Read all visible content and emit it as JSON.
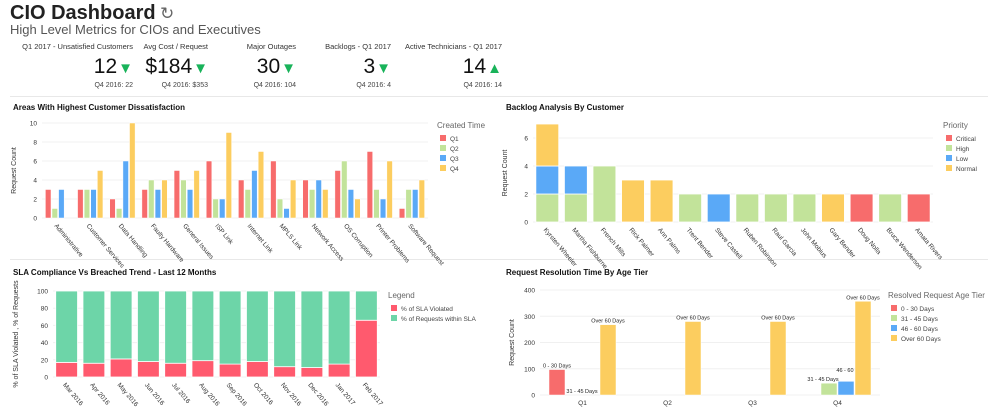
{
  "header": {
    "title": "CIO Dashboard",
    "subtitle": "High Level Metrics for CIOs and Executives",
    "refresh_icon": "refresh-icon"
  },
  "kpis": [
    {
      "label": "Q1 2017 - Unsatisfied Customers",
      "value": "12",
      "trend": "down",
      "previous": "Q4 2016: 22"
    },
    {
      "label": "Avg Cost / Request",
      "value": "$184",
      "trend": "down",
      "previous": "Q4 2016: $353"
    },
    {
      "label": "Major Outages",
      "value": "30",
      "trend": "down",
      "previous": "Q4 2016: 104"
    },
    {
      "label": "Backlogs - Q1 2017",
      "value": "3",
      "trend": "down",
      "previous": "Q4 2016: 4"
    },
    {
      "label": "Active Technicians - Q1 2017",
      "value": "14",
      "trend": "up",
      "previous": "Q4 2016: 14"
    }
  ],
  "colors": {
    "trend": "#19b35a",
    "q1": "#f76c6c",
    "q2": "#c2e39a",
    "q3": "#5aa9f7",
    "q4": "#fccd5f",
    "violated": "#ff5a6e",
    "within": "#6dd5a8"
  },
  "chart_data": [
    {
      "id": "c1",
      "type": "bar",
      "title": "Areas With Highest Customer Dissatisfaction",
      "ylabel": "Request Count",
      "ylim": [
        0,
        10
      ],
      "yticks": [
        0,
        2,
        4,
        6,
        8,
        10
      ],
      "legend_title": "Created Time",
      "legend": "right",
      "grid": true,
      "categories": [
        "Administrative",
        "Customer Services",
        "Data Handling",
        "Faulty Hardware",
        "General Issues",
        "ISP Link",
        "Internet Link",
        "MPLS Link",
        "Network Access",
        "OS Corruption",
        "Printer Problems",
        "Software Request"
      ],
      "series": [
        {
          "name": "Q1",
          "color": "#f76c6c",
          "values": [
            3,
            3,
            2,
            3,
            5,
            6,
            4,
            6,
            4,
            5,
            7,
            1
          ]
        },
        {
          "name": "Q2",
          "color": "#c2e39a",
          "values": [
            1,
            3,
            1,
            4,
            4,
            2,
            3,
            2,
            3,
            6,
            3,
            3
          ]
        },
        {
          "name": "Q3",
          "color": "#5aa9f7",
          "values": [
            3,
            3,
            6,
            3,
            3,
            2,
            5,
            1,
            4,
            3,
            2,
            3
          ]
        },
        {
          "name": "Q4",
          "color": "#fccd5f",
          "values": [
            0,
            5,
            10,
            4,
            5,
            9,
            7,
            4,
            3,
            2,
            6,
            4
          ]
        }
      ]
    },
    {
      "id": "c2",
      "type": "bar",
      "stacked": true,
      "title": "Backlog Analysis By Customer",
      "ylabel": "Request Count",
      "ylim": [
        0,
        7
      ],
      "yticks": [
        0,
        2,
        4,
        6
      ],
      "legend_title": "Priority",
      "legend": "right",
      "grid": true,
      "categories": [
        "Kyrsten Wheeler",
        "Martha Fishburne",
        "French Mills",
        "Rick Palmer",
        "Ann Palms",
        "Trent Bender",
        "Steve Castell",
        "Ruben Robinson",
        "Raul Garcia",
        "John Mobius",
        "Gary Bender",
        "Doug Nolla",
        "Bruce Wenderson",
        "Amata Rivers"
      ],
      "series": [
        {
          "name": "Critical",
          "color": "#f76c6c",
          "values": [
            0,
            0,
            0,
            0,
            0,
            0,
            0,
            0,
            0,
            0,
            0,
            2,
            0,
            2
          ]
        },
        {
          "name": "High",
          "color": "#c2e39a",
          "values": [
            2,
            2,
            4,
            0,
            0,
            2,
            0,
            2,
            2,
            2,
            0,
            0,
            2,
            0
          ]
        },
        {
          "name": "Low",
          "color": "#5aa9f7",
          "values": [
            2,
            2,
            0,
            0,
            0,
            0,
            2,
            0,
            0,
            0,
            0,
            0,
            0,
            0
          ]
        },
        {
          "name": "Normal",
          "color": "#fccd5f",
          "values": [
            3,
            0,
            0,
            3,
            3,
            0,
            0,
            0,
            0,
            0,
            2,
            0,
            0,
            0
          ]
        }
      ]
    },
    {
      "id": "c3",
      "type": "bar",
      "stacked": true,
      "title": "SLA Compliance Vs Breached Trend - Last 12 Months",
      "ylabel": "% of SLA Violated , % of Requests",
      "ylim": [
        0,
        100
      ],
      "yticks": [
        0,
        20,
        40,
        60,
        80,
        100
      ],
      "legend_title": "Legend",
      "legend": "right",
      "grid": true,
      "categories": [
        "Mar 2016",
        "Apr 2016",
        "May 2016",
        "Jun 2016",
        "Jul 2016",
        "Aug 2016",
        "Sep 2016",
        "Oct 2016",
        "Nov 2016",
        "Dec 2016",
        "Jan 2017",
        "Feb 2017"
      ],
      "series": [
        {
          "name": "% of SLA Violated",
          "color": "#ff5a6e",
          "values": [
            17,
            16,
            21,
            18,
            16,
            19,
            15,
            18,
            12,
            11,
            15,
            66
          ]
        },
        {
          "name": "% of Requests within SLA",
          "color": "#6dd5a8",
          "values": [
            83,
            84,
            79,
            82,
            84,
            81,
            85,
            82,
            88,
            89,
            85,
            34
          ]
        }
      ]
    },
    {
      "id": "c4",
      "type": "bar",
      "title": "Request Resolution Time By Age Tier",
      "ylabel": "Request Count",
      "ylim": [
        0,
        400
      ],
      "yticks": [
        0,
        100,
        200,
        300,
        400
      ],
      "legend_title": "Resolved Request Age Tier",
      "legend": "right",
      "grid": true,
      "categories": [
        "Q1",
        "Q2",
        "Q3",
        "Q4"
      ],
      "series": [
        {
          "name": "0 - 30 Days",
          "color": "#f76c6c",
          "values": [
            97,
            null,
            null,
            null
          ]
        },
        {
          "name": "31 - 45 Days",
          "color": "#c2e39a",
          "values": [
            0,
            null,
            null,
            45
          ]
        },
        {
          "name": "46 - 60 Days",
          "color": "#5aa9f7",
          "values": [
            null,
            null,
            null,
            52
          ]
        },
        {
          "name": "Over 60 Days",
          "color": "#fccd5f",
          "values": [
            268,
            280,
            280,
            357
          ]
        }
      ],
      "data_labels": true
    }
  ]
}
